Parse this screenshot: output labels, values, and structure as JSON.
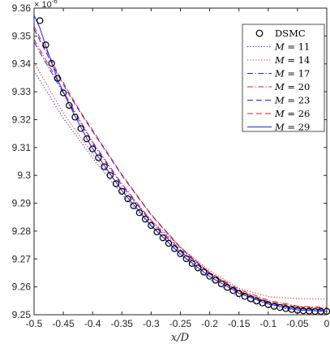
{
  "chart_data": {
    "type": "line",
    "title": "",
    "xlabel": "x/D",
    "ylabel": "",
    "y_multiplier": "×10^-6",
    "y_multiplier_base": "× 10",
    "y_multiplier_exp": "-6",
    "xlim": [
      -0.5,
      0
    ],
    "ylim": [
      9.25,
      9.36
    ],
    "x_ticks": [
      -0.5,
      -0.45,
      -0.4,
      -0.35,
      -0.3,
      -0.25,
      -0.2,
      -0.15,
      -0.1,
      -0.05,
      0
    ],
    "x_tick_labels": [
      "-0.5",
      "-0.45",
      "-0.4",
      "-0.35",
      "-0.3",
      "-0.25",
      "-0.2",
      "-0.15",
      "-0.1",
      "-0.05",
      "0"
    ],
    "y_ticks": [
      9.25,
      9.26,
      9.27,
      9.28,
      9.29,
      9.3,
      9.31,
      9.32,
      9.33,
      9.34,
      9.35,
      9.36
    ],
    "y_tick_labels": [
      "9.25",
      "9.26",
      "9.27",
      "9.28",
      "9.29",
      "9.3",
      "9.31",
      "9.32",
      "9.33",
      "9.34",
      "9.35",
      "9.36"
    ],
    "grid": false,
    "legend_position": "top-right",
    "dsmc": {
      "name": "DSMC",
      "color": "#000000",
      "x": [
        -0.49,
        -0.48,
        -0.47,
        -0.46,
        -0.45,
        -0.44,
        -0.43,
        -0.42,
        -0.41,
        -0.4,
        -0.39,
        -0.38,
        -0.37,
        -0.36,
        -0.35,
        -0.34,
        -0.33,
        -0.32,
        -0.31,
        -0.3,
        -0.29,
        -0.28,
        -0.27,
        -0.26,
        -0.25,
        -0.24,
        -0.23,
        -0.22,
        -0.21,
        -0.2,
        -0.19,
        -0.18,
        -0.17,
        -0.16,
        -0.15,
        -0.14,
        -0.13,
        -0.12,
        -0.11,
        -0.1,
        -0.09,
        -0.08,
        -0.07,
        -0.06,
        -0.05,
        -0.04,
        -0.03,
        -0.02,
        -0.01,
        0.0
      ],
      "y": [
        9.3555,
        9.3468,
        9.3402,
        9.3348,
        9.3296,
        9.3251,
        9.3209,
        9.3168,
        9.3131,
        9.3095,
        9.3063,
        9.3031,
        9.3,
        9.297,
        9.2943,
        9.2916,
        9.2891,
        9.2866,
        9.2843,
        9.282,
        9.2797,
        9.2776,
        9.2756,
        9.2737,
        9.2719,
        9.2701,
        9.2684,
        9.2668,
        9.2653,
        9.2638,
        9.2624,
        9.2611,
        9.2598,
        9.2587,
        9.2576,
        9.2566,
        9.2557,
        9.2549,
        9.2542,
        9.2536,
        9.253,
        9.2526,
        9.2522,
        9.2519,
        9.2516,
        9.2514,
        9.2513,
        9.2512,
        9.2512,
        9.2512
      ]
    },
    "series": [
      {
        "name": "M = 11",
        "name_var": "M",
        "name_eq": " = 11",
        "color": "#1f1fff",
        "dash": "1.2,2.2",
        "x": [
          -0.5,
          -0.45,
          -0.4,
          -0.35,
          -0.3,
          -0.25,
          -0.2,
          -0.15,
          -0.1,
          -0.05,
          0.0
        ],
        "y": [
          9.3375,
          9.3205,
          9.3062,
          9.2933,
          9.2818,
          9.2716,
          9.2627,
          9.2562,
          9.2528,
          9.2517,
          9.2515
        ]
      },
      {
        "name": "M = 14",
        "name_var": "M",
        "name_eq": " = 14",
        "color": "#e8191f",
        "dash": "1.2,2.2",
        "x": [
          -0.5,
          -0.45,
          -0.4,
          -0.35,
          -0.3,
          -0.25,
          -0.2,
          -0.15,
          -0.1,
          -0.05,
          0.0
        ],
        "y": [
          9.3405,
          9.3223,
          9.3077,
          9.2952,
          9.284,
          9.2742,
          9.2658,
          9.2595,
          9.2565,
          9.2558,
          9.2556
        ]
      },
      {
        "name": "M = 17",
        "name_var": "M",
        "name_eq": " = 17",
        "color": "#1f1fff",
        "dash": "7,2.5,1.2,2.5",
        "x": [
          -0.5,
          -0.47,
          -0.45,
          -0.43,
          -0.4,
          -0.35,
          -0.3,
          -0.25,
          -0.2,
          -0.15,
          -0.1,
          -0.05,
          0.0
        ],
        "y": [
          9.3478,
          9.3368,
          9.3295,
          9.3222,
          9.3115,
          9.2965,
          9.2832,
          9.2727,
          9.2646,
          9.2585,
          9.2545,
          9.2523,
          9.2517
        ]
      },
      {
        "name": "M = 20",
        "name_var": "M",
        "name_eq": " = 20",
        "color": "#e8191f",
        "dash": "7,2.5,1.2,2.5",
        "x": [
          -0.5,
          -0.47,
          -0.45,
          -0.43,
          -0.4,
          -0.35,
          -0.3,
          -0.25,
          -0.2,
          -0.15,
          -0.1,
          -0.05,
          0.0
        ],
        "y": [
          9.3488,
          9.3378,
          9.3302,
          9.3228,
          9.312,
          9.297,
          9.2838,
          9.2733,
          9.2652,
          9.2591,
          9.2552,
          9.2531,
          9.2526
        ]
      },
      {
        "name": "M = 23",
        "name_var": "M",
        "name_eq": " = 23",
        "color": "#1f1fff",
        "dash": "7,4",
        "x": [
          -0.5,
          -0.48,
          -0.46,
          -0.44,
          -0.42,
          -0.4,
          -0.35,
          -0.3,
          -0.25,
          -0.2,
          -0.15,
          -0.1,
          -0.05,
          0.0
        ],
        "y": [
          9.3525,
          9.3443,
          9.3363,
          9.329,
          9.3222,
          9.3158,
          9.3,
          9.2858,
          9.274,
          9.2647,
          9.2581,
          9.2542,
          9.2522,
          9.2516
        ]
      },
      {
        "name": "M = 26",
        "name_var": "M",
        "name_eq": " = 26",
        "color": "#e8191f",
        "dash": "7,4",
        "x": [
          -0.5,
          -0.48,
          -0.46,
          -0.44,
          -0.42,
          -0.4,
          -0.35,
          -0.3,
          -0.25,
          -0.2,
          -0.15,
          -0.1,
          -0.05,
          0.0
        ],
        "y": [
          9.3535,
          9.3453,
          9.337,
          9.3296,
          9.3226,
          9.3162,
          9.3003,
          9.286,
          9.2742,
          9.265,
          9.2585,
          9.2547,
          9.2528,
          9.2523
        ]
      },
      {
        "name": "M = 29",
        "name_var": "M",
        "name_eq": " = 29",
        "color": "#1f1fff",
        "dash": "",
        "x": [
          -0.5,
          -0.49,
          -0.48,
          -0.47,
          -0.46,
          -0.45,
          -0.43,
          -0.41,
          -0.4,
          -0.35,
          -0.3,
          -0.25,
          -0.2,
          -0.15,
          -0.1,
          -0.05,
          0.0
        ],
        "y": [
          9.3575,
          9.3528,
          9.3465,
          9.3405,
          9.3345,
          9.3298,
          9.3212,
          9.3133,
          9.3096,
          9.2945,
          9.282,
          9.2718,
          9.2637,
          9.2577,
          9.2538,
          9.2517,
          9.2512
        ]
      }
    ]
  }
}
